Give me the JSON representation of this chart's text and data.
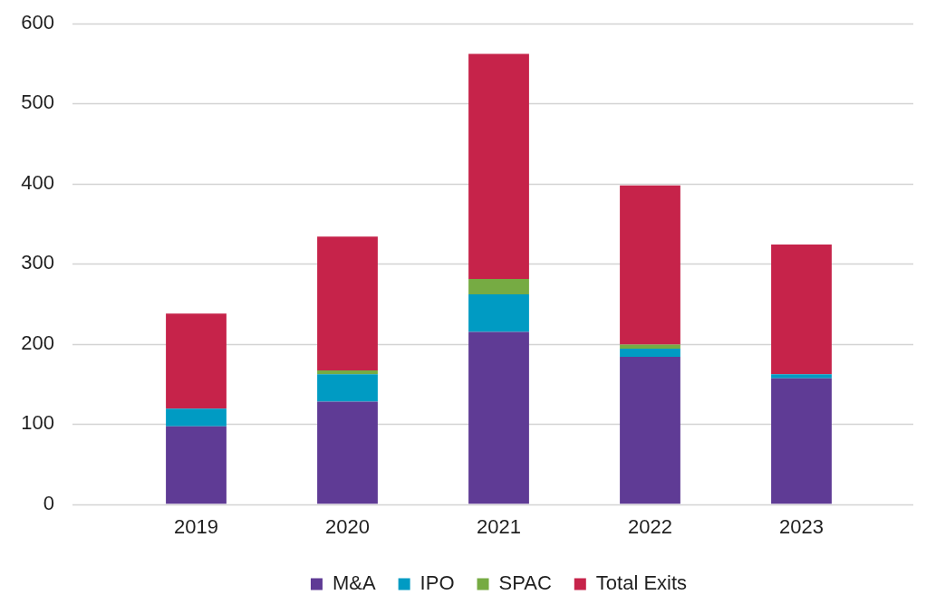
{
  "chart_data": {
    "type": "bar",
    "categories": [
      "2019",
      "2020",
      "2021",
      "2022",
      "2023"
    ],
    "series": [
      {
        "name": "M&A",
        "color": "#5f3b95",
        "values": [
          97,
          128,
          215,
          184,
          157
        ]
      },
      {
        "name": "IPO",
        "color": "#009bc3",
        "values": [
          22,
          34,
          47,
          10,
          5
        ]
      },
      {
        "name": "SPAC",
        "color": "#76ab43",
        "values": [
          0,
          5,
          19,
          5,
          0
        ]
      },
      {
        "name": "Total Exits",
        "color": "#c6234a",
        "values": [
          119,
          167,
          281,
          199,
          162
        ]
      }
    ],
    "stacked": true,
    "ylim": [
      0,
      600
    ],
    "yticks": [
      0,
      100,
      200,
      300,
      400,
      500,
      600
    ],
    "grid": "y",
    "legend": "bottom"
  }
}
